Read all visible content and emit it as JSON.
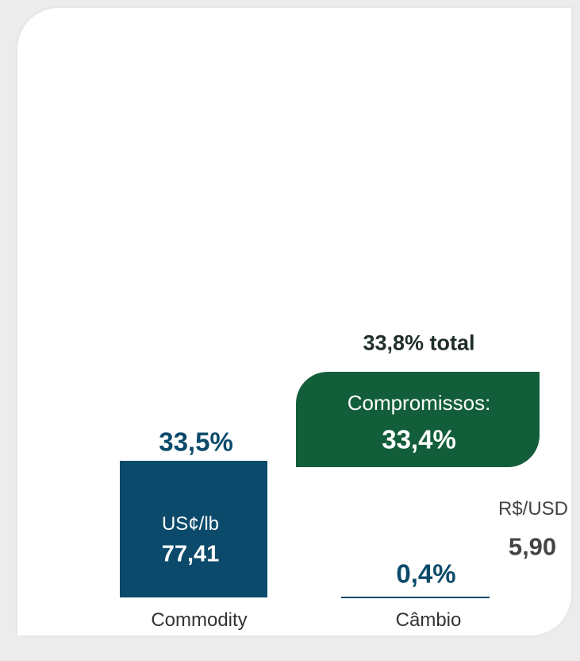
{
  "total_label": "33,8% total",
  "commitments": {
    "label": "Compromissos:",
    "value": "33,4%"
  },
  "commodity": {
    "share": "33,5%",
    "unit": "US¢/lb",
    "price": "77,41",
    "label": "Commodity"
  },
  "exchange": {
    "share": "0,4%",
    "unit": "R$/USD",
    "rate": "5,90",
    "label": "Câmbio"
  }
}
